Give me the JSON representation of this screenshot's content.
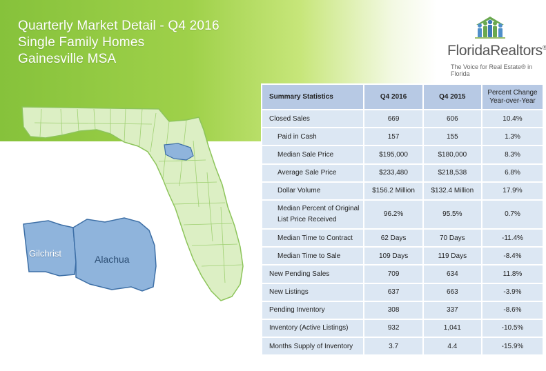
{
  "header": {
    "title_line1": "Quarterly Market Detail - Q4 2016",
    "title_line2": "Single Family Homes",
    "title_line3": "Gainesville MSA"
  },
  "logo": {
    "name": "FloridaRealtors",
    "registered": "®",
    "tagline": "The Voice for Real Estate® in Florida",
    "icon": "people-house-icon"
  },
  "map": {
    "regions": [
      "Gilchrist",
      "Alachua"
    ],
    "colors": {
      "state_fill": "#dcefc4",
      "state_stroke": "#8cc45a",
      "highlight_fill": "#8fb4dc",
      "highlight_stroke": "#3d6fa6"
    }
  },
  "table": {
    "headers": {
      "label": "Summary Statistics",
      "col1": "Q4 2016",
      "col2": "Q4 2015",
      "pct_line1": "Percent Change",
      "pct_line2": "Year-over-Year"
    },
    "rows": [
      {
        "label": "Closed Sales",
        "v1": "669",
        "v2": "606",
        "pct": "10.4%"
      },
      {
        "label": "Paid in Cash",
        "v1": "157",
        "v2": "155",
        "pct": "1.3%"
      },
      {
        "label": "Median Sale Price",
        "v1": "$195,000",
        "v2": "$180,000",
        "pct": "8.3%"
      },
      {
        "label": "Average Sale Price",
        "v1": "$233,480",
        "v2": "$218,538",
        "pct": "6.8%"
      },
      {
        "label": "Dollar Volume",
        "v1": "$156.2 Million",
        "v2": "$132.4 Million",
        "pct": "17.9%"
      },
      {
        "label_line1": "Median Percent of Original",
        "label_line2": "List Price Received",
        "v1": "96.2%",
        "v2": "95.5%",
        "pct": "0.7%"
      },
      {
        "label": "Median Time to Contract",
        "v1": "62 Days",
        "v2": "70 Days",
        "pct": "-11.4%"
      },
      {
        "label": "Median Time to Sale",
        "v1": "109 Days",
        "v2": "119 Days",
        "pct": "-8.4%"
      },
      {
        "label": "New Pending Sales",
        "v1": "709",
        "v2": "634",
        "pct": "11.8%"
      },
      {
        "label": "New Listings",
        "v1": "637",
        "v2": "663",
        "pct": "-3.9%"
      },
      {
        "label": "Pending Inventory",
        "v1": "308",
        "v2": "337",
        "pct": "-8.6%"
      },
      {
        "label": "Inventory (Active Listings)",
        "v1": "932",
        "v2": "1,041",
        "pct": "-10.5%"
      },
      {
        "label": "Months Supply of Inventory",
        "v1": "3.7",
        "v2": "4.4",
        "pct": "-15.9%"
      }
    ]
  }
}
